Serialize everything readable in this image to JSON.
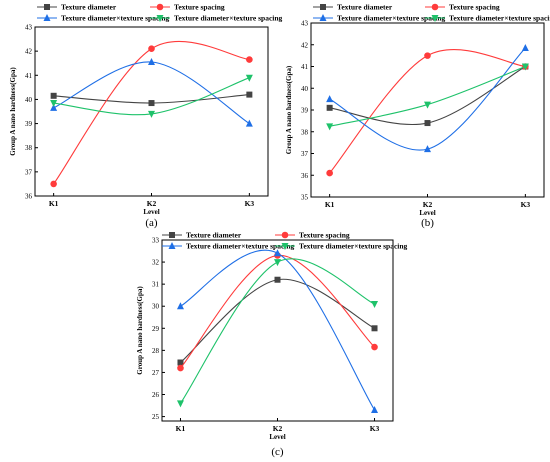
{
  "chart_data": [
    {
      "type": "line",
      "panel_label": "(a)",
      "categories": [
        "K1",
        "K2",
        "K3"
      ],
      "xlabel": "Level",
      "ylabel": "Group A nano hardness(Gpa)",
      "ylim": [
        36,
        43
      ],
      "yticks": [
        "36",
        "37",
        "38",
        "39",
        "40",
        "41",
        "42",
        "43"
      ],
      "legend_position": "top",
      "series": [
        {
          "name": "Texture diameter",
          "color": "#444444",
          "marker": "square",
          "values": [
            40.15,
            39.85,
            40.2
          ]
        },
        {
          "name": "Texture spacing",
          "color": "#ff3b3b",
          "marker": "circle",
          "values": [
            36.5,
            42.1,
            41.65
          ]
        },
        {
          "name": "Texture diameter×texture spacing",
          "color": "#1f6fe6",
          "marker": "triangle-up",
          "values": [
            39.65,
            41.55,
            39.0
          ]
        },
        {
          "name": "Texture diameter×texture spacing",
          "color": "#1ec26a",
          "marker": "triangle-down",
          "values": [
            39.85,
            39.4,
            40.9
          ]
        }
      ]
    },
    {
      "type": "line",
      "panel_label": "(b)",
      "categories": [
        "K1",
        "K2",
        "K3"
      ],
      "xlabel": "Level",
      "ylabel": "Group A nano hardness(Gpa)",
      "ylim": [
        35,
        43
      ],
      "yticks": [
        "35",
        "36",
        "37",
        "38",
        "39",
        "40",
        "41",
        "42",
        "43"
      ],
      "legend_position": "top",
      "series": [
        {
          "name": "Texture diameter",
          "color": "#444444",
          "marker": "square",
          "values": [
            39.1,
            38.4,
            41.0
          ]
        },
        {
          "name": "Texture spacing",
          "color": "#ff3b3b",
          "marker": "circle",
          "values": [
            36.1,
            41.5,
            41.0
          ]
        },
        {
          "name": "Texture diameter×texture spacing",
          "color": "#1f6fe6",
          "marker": "triangle-up",
          "values": [
            39.5,
            37.2,
            41.85
          ]
        },
        {
          "name": "Texture diameter×texture spacing",
          "color": "#1ec26a",
          "marker": "triangle-down",
          "values": [
            38.25,
            39.25,
            41.0
          ]
        }
      ]
    },
    {
      "type": "line",
      "panel_label": "(c)",
      "categories": [
        "K1",
        "K2",
        "K3"
      ],
      "xlabel": "Level",
      "ylabel": "Group A nano hardness(Gpa)",
      "ylim": [
        24.8,
        33
      ],
      "yticks": [
        "25",
        "26",
        "27",
        "28",
        "29",
        "30",
        "31",
        "32",
        "33"
      ],
      "legend_position": "top",
      "series": [
        {
          "name": "Texture diameter",
          "color": "#444444",
          "marker": "square",
          "values": [
            27.45,
            31.2,
            29.0
          ]
        },
        {
          "name": "Texture spacing",
          "color": "#ff3b3b",
          "marker": "circle",
          "values": [
            27.2,
            32.3,
            28.15
          ]
        },
        {
          "name": "Texture diameter×texture spacing",
          "color": "#1f6fe6",
          "marker": "triangle-up",
          "values": [
            30.0,
            32.4,
            25.3
          ]
        },
        {
          "name": "Texture diameter×texture spacing",
          "color": "#1ec26a",
          "marker": "triangle-down",
          "values": [
            25.6,
            32.0,
            30.1
          ]
        }
      ]
    }
  ]
}
